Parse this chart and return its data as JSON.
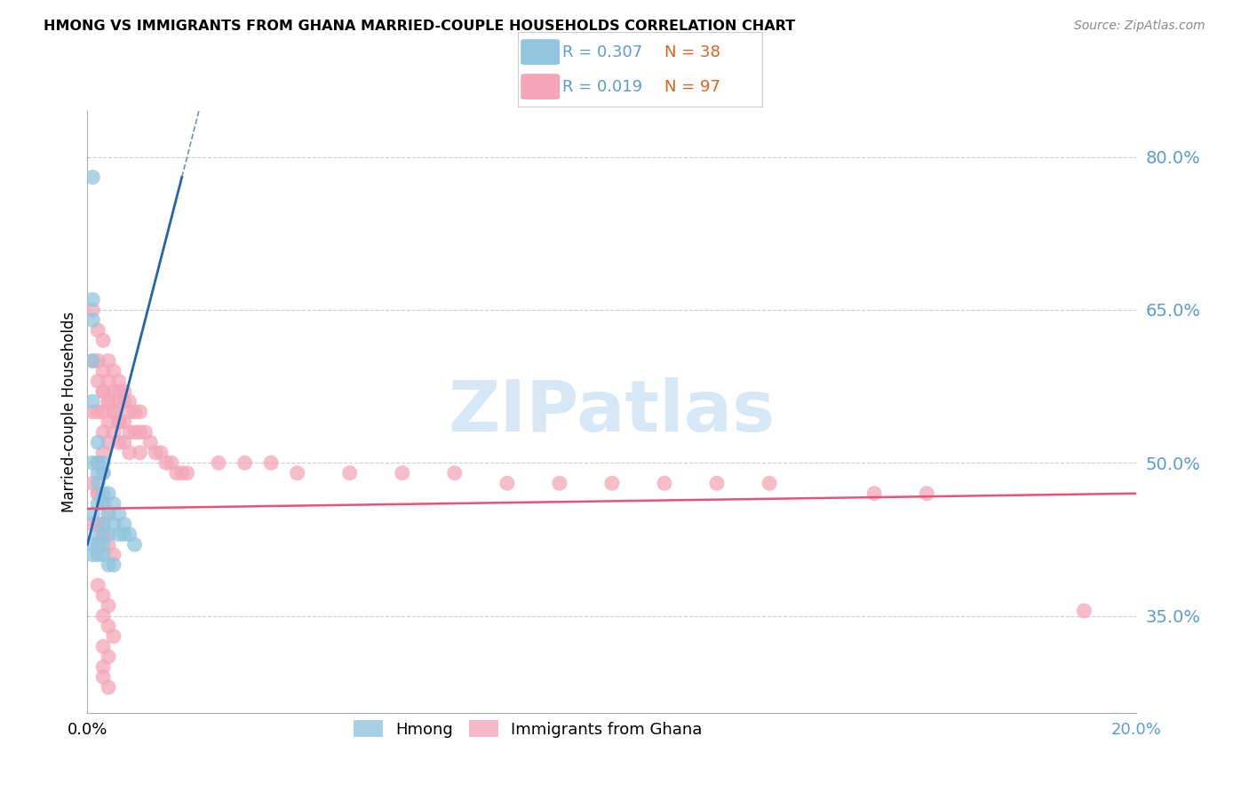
{
  "title": "HMONG VS IMMIGRANTS FROM GHANA MARRIED-COUPLE HOUSEHOLDS CORRELATION CHART",
  "source": "Source: ZipAtlas.com",
  "ylabel": "Married-couple Households",
  "ytick_labels": [
    "35.0%",
    "50.0%",
    "65.0%",
    "80.0%"
  ],
  "ytick_values": [
    0.35,
    0.5,
    0.65,
    0.8
  ],
  "xlim": [
    0.0,
    0.2
  ],
  "ylim": [
    0.255,
    0.845
  ],
  "blue_color": "#92c5de",
  "pink_color": "#f4a6b8",
  "blue_line_color": "#2166ac",
  "pink_line_color": "#e8527a",
  "axis_label_color": "#5b9bd5",
  "watermark_color": "#d6e8f5",
  "grid_color": "#cccccc",
  "background_color": "#ffffff",
  "hmong_x": [
    0.001,
    0.001,
    0.001,
    0.001,
    0.001,
    0.001,
    0.001,
    0.002,
    0.002,
    0.002,
    0.002,
    0.002,
    0.002,
    0.003,
    0.003,
    0.003,
    0.003,
    0.003,
    0.004,
    0.004,
    0.004,
    0.005,
    0.005,
    0.006,
    0.006,
    0.007,
    0.007,
    0.008,
    0.009,
    0.001,
    0.001,
    0.002,
    0.002,
    0.003,
    0.003,
    0.004,
    0.005
  ],
  "hmong_y": [
    0.78,
    0.66,
    0.64,
    0.6,
    0.56,
    0.5,
    0.45,
    0.52,
    0.5,
    0.49,
    0.48,
    0.46,
    0.43,
    0.5,
    0.49,
    0.47,
    0.46,
    0.44,
    0.47,
    0.45,
    0.43,
    0.46,
    0.44,
    0.45,
    0.43,
    0.44,
    0.43,
    0.43,
    0.42,
    0.42,
    0.41,
    0.42,
    0.41,
    0.42,
    0.41,
    0.4,
    0.4
  ],
  "ghana_x": [
    0.001,
    0.001,
    0.001,
    0.001,
    0.001,
    0.002,
    0.002,
    0.002,
    0.002,
    0.002,
    0.002,
    0.003,
    0.003,
    0.003,
    0.003,
    0.003,
    0.003,
    0.003,
    0.004,
    0.004,
    0.004,
    0.004,
    0.004,
    0.005,
    0.005,
    0.005,
    0.005,
    0.006,
    0.006,
    0.006,
    0.006,
    0.006,
    0.007,
    0.007,
    0.007,
    0.007,
    0.008,
    0.008,
    0.008,
    0.008,
    0.009,
    0.009,
    0.01,
    0.01,
    0.01,
    0.011,
    0.012,
    0.013,
    0.014,
    0.015,
    0.016,
    0.017,
    0.018,
    0.019,
    0.025,
    0.03,
    0.035,
    0.04,
    0.05,
    0.06,
    0.07,
    0.08,
    0.09,
    0.1,
    0.11,
    0.12,
    0.13,
    0.15,
    0.16,
    0.002,
    0.003,
    0.004,
    0.005,
    0.006,
    0.002,
    0.003,
    0.004,
    0.005,
    0.002,
    0.003,
    0.004,
    0.003,
    0.004,
    0.005,
    0.003,
    0.004,
    0.003,
    0.003,
    0.004,
    0.002,
    0.003,
    0.004,
    0.002,
    0.003,
    0.19
  ],
  "ghana_y": [
    0.65,
    0.6,
    0.55,
    0.48,
    0.44,
    0.63,
    0.6,
    0.55,
    0.5,
    0.47,
    0.44,
    0.62,
    0.59,
    0.57,
    0.55,
    0.53,
    0.51,
    0.49,
    0.6,
    0.58,
    0.56,
    0.54,
    0.52,
    0.59,
    0.57,
    0.55,
    0.53,
    0.58,
    0.57,
    0.56,
    0.54,
    0.52,
    0.57,
    0.56,
    0.54,
    0.52,
    0.56,
    0.55,
    0.53,
    0.51,
    0.55,
    0.53,
    0.55,
    0.53,
    0.51,
    0.53,
    0.52,
    0.51,
    0.51,
    0.5,
    0.5,
    0.49,
    0.49,
    0.49,
    0.5,
    0.5,
    0.5,
    0.49,
    0.49,
    0.49,
    0.49,
    0.48,
    0.48,
    0.48,
    0.48,
    0.48,
    0.48,
    0.47,
    0.47,
    0.58,
    0.57,
    0.56,
    0.55,
    0.54,
    0.44,
    0.43,
    0.42,
    0.41,
    0.38,
    0.37,
    0.36,
    0.35,
    0.34,
    0.33,
    0.32,
    0.31,
    0.3,
    0.29,
    0.28,
    0.47,
    0.46,
    0.45,
    0.44,
    0.43,
    0.355
  ]
}
